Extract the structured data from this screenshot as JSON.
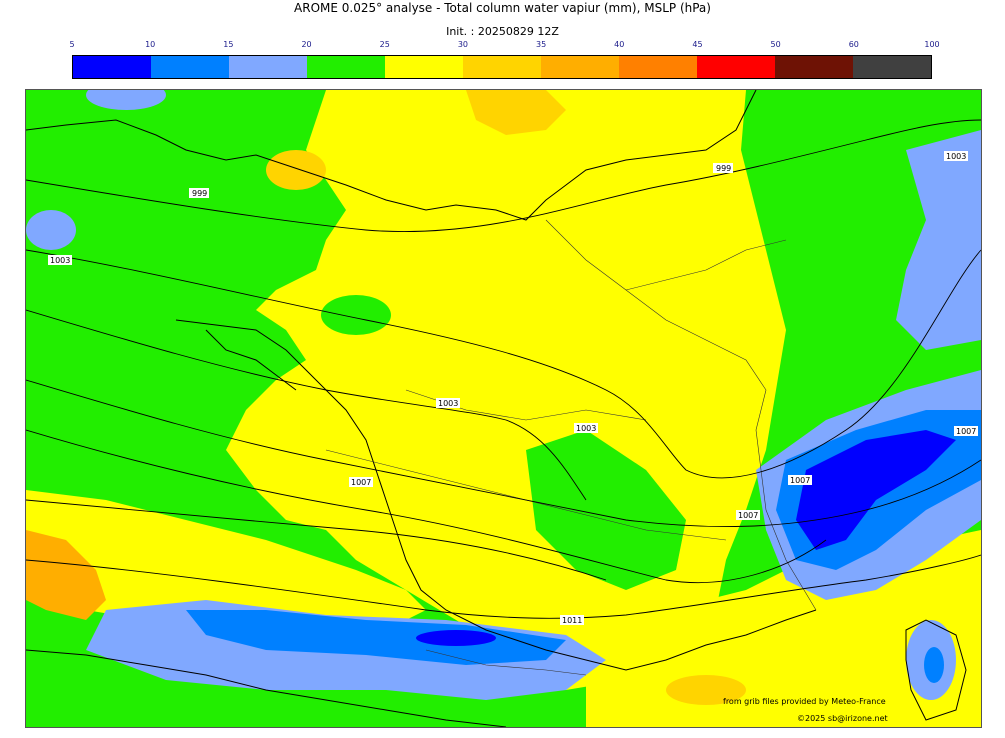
{
  "header": {
    "title": "AROME 0.025° analyse - Total column water vapiur (mm), MSLP (hPa)",
    "init": "Init. : 20250829 12Z"
  },
  "legend": {
    "ticks": [
      "5",
      "10",
      "15",
      "20",
      "25",
      "30",
      "35",
      "40",
      "45",
      "50",
      "60",
      "100"
    ],
    "colors": [
      "#0000ff",
      "#0080ff",
      "#80a8ff",
      "#22ee00",
      "#ffff00",
      "#ffd400",
      "#ffae00",
      "#ff8000",
      "#ff0000",
      "#6e1205",
      "#404040"
    ]
  },
  "isobars": {
    "labels": [
      "999",
      "1003",
      "999",
      "1003",
      "1003",
      "1003",
      "1007",
      "1007",
      "1007",
      "1007",
      "1011"
    ]
  },
  "credits": {
    "source": "from grib files provided by Meteo-France",
    "copyright": "©2025 sb@irizone.net"
  }
}
